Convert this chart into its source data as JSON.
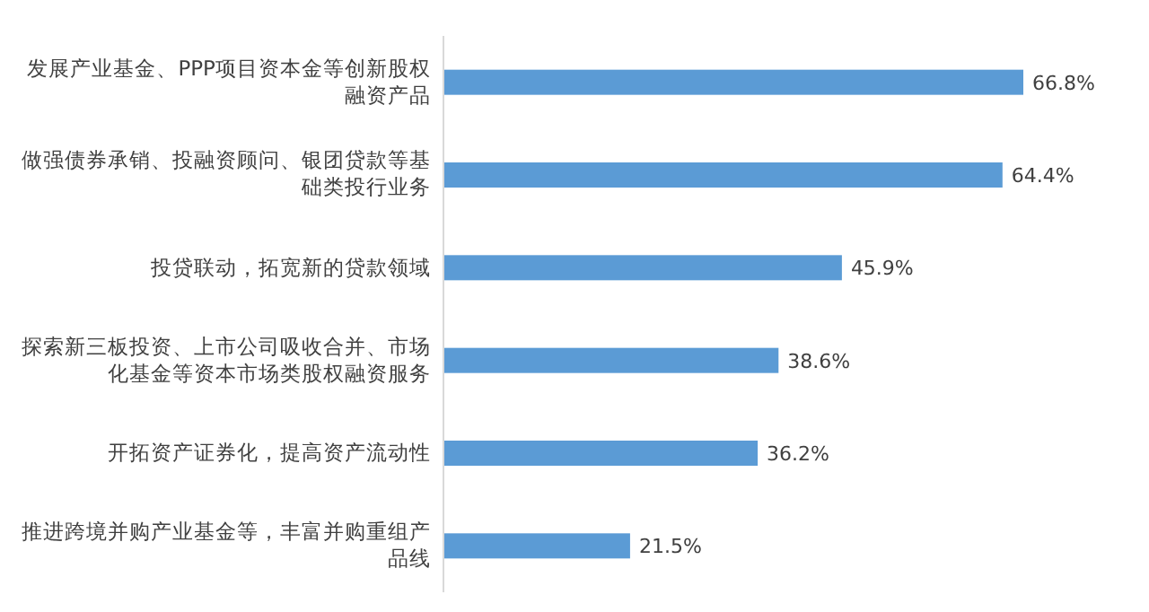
{
  "chart_data": {
    "type": "bar",
    "orientation": "horizontal",
    "categories": [
      "发展产业基金、PPP项目资本金等创新股权融资产品",
      "做强债券承销、投融资顾问、银团贷款等基础类投行业务",
      "投贷联动，拓宽新的贷款领域",
      "探索新三板投资、上市公司吸收合并、市场化基金等资本市场类股权融资服务",
      "开拓资产证券化，提高资产流动性",
      "推进跨境并购产业基金等，丰富并购重组产品线"
    ],
    "values": [
      66.8,
      64.4,
      45.9,
      38.6,
      36.2,
      21.5
    ],
    "value_labels": [
      "66.8%",
      "64.4%",
      "45.9%",
      "38.6%",
      "36.2%",
      "21.5%"
    ],
    "color": "#5b9bd5"
  }
}
